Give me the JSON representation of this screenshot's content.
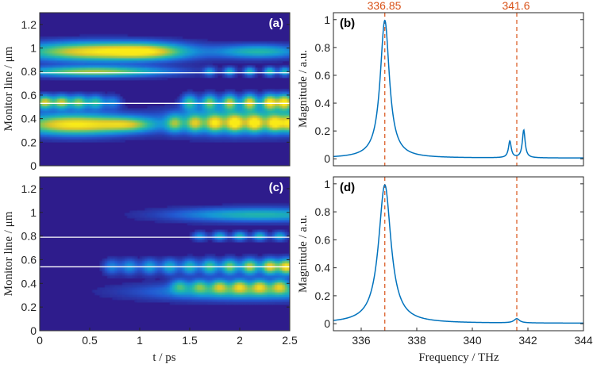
{
  "colors": {
    "background": "#2D1E8C",
    "line": "#0072BD",
    "dashed": "#D95319",
    "monitor": "#ffffff",
    "axis": "#262626"
  },
  "labels": {
    "ylabel_left": "Monitor line / μm",
    "xlabel_left": "t / ps",
    "ylabel_right": "Magnitude / a.u.",
    "xlabel_right": "Frequency / THz",
    "marker1": "336.85",
    "marker2": "341.6"
  },
  "chart_data": [
    {
      "id": "a",
      "type": "heatmap",
      "panel_label": "(a)",
      "xlabel": "",
      "ylabel": "Monitor line / μm",
      "xlim": [
        0,
        2.5
      ],
      "ylim": [
        0,
        1.3
      ],
      "yticks": [
        0,
        0.2,
        0.4,
        0.6,
        0.8,
        1,
        1.2
      ],
      "ytick_labels": [
        "0",
        "0.2",
        "0.4",
        "0.6",
        "0.8",
        "1",
        "1.2"
      ],
      "monitor_lines": [
        0.79,
        0.53
      ],
      "blobs": [
        {
          "t": 0.6,
          "y": 0.97,
          "st": 0.55,
          "sy": 0.055,
          "a": 0.95
        },
        {
          "t": 1.1,
          "y": 0.97,
          "st": 0.25,
          "sy": 0.045,
          "a": 0.4
        },
        {
          "t": 0.55,
          "y": 0.8,
          "st": 0.5,
          "sy": 0.03,
          "a": 0.75
        },
        {
          "t": 0.35,
          "y": 0.35,
          "st": 0.4,
          "sy": 0.06,
          "a": 1.0
        },
        {
          "t": 0.9,
          "y": 0.35,
          "st": 0.18,
          "sy": 0.04,
          "a": 0.45
        },
        {
          "t": 2.2,
          "y": 0.97,
          "st": 0.3,
          "sy": 0.04,
          "a": 0.5
        },
        {
          "t": 2.0,
          "y": 0.38,
          "st": 0.5,
          "sy": 0.08,
          "a": 0.5
        }
      ],
      "rows": [
        {
          "y": 0.54,
          "sy": 0.04,
          "t": [
            0.05,
            0.22,
            0.39,
            0.56,
            0.73
          ],
          "a": [
            0.85,
            0.8,
            0.7,
            0.55,
            0.3
          ],
          "st": 0.06
        },
        {
          "y": 0.54,
          "sy": 0.045,
          "t": [
            1.5,
            1.7,
            1.9,
            2.1,
            2.3,
            2.45
          ],
          "a": [
            0.55,
            0.65,
            0.75,
            0.85,
            0.95,
            1.0
          ],
          "st": 0.055
        },
        {
          "y": 0.8,
          "sy": 0.025,
          "t": [
            1.7,
            1.9,
            2.1,
            2.3,
            2.45
          ],
          "a": [
            0.35,
            0.45,
            0.5,
            0.55,
            0.5
          ],
          "st": 0.04
        },
        {
          "y": 0.36,
          "sy": 0.05,
          "t": [
            1.35,
            1.55,
            1.75,
            1.95,
            2.15,
            2.35,
            2.5
          ],
          "a": [
            0.5,
            0.55,
            0.6,
            0.65,
            0.65,
            0.7,
            0.7
          ],
          "st": 0.06
        }
      ]
    },
    {
      "id": "c",
      "type": "heatmap",
      "panel_label": "(c)",
      "xlabel": "t / ps",
      "ylabel": "Monitor line / μm",
      "xlim": [
        0,
        2.5
      ],
      "ylim": [
        0,
        1.3
      ],
      "xticks": [
        0,
        0.5,
        1,
        1.5,
        2,
        2.5
      ],
      "xtick_labels": [
        "0",
        "0.5",
        "1",
        "1.5",
        "2",
        "2.5"
      ],
      "yticks": [
        0,
        0.2,
        0.4,
        0.6,
        0.8,
        1,
        1.2
      ],
      "ytick_labels": [
        "0",
        "0.2",
        "0.4",
        "0.6",
        "0.8",
        "1",
        "1.2"
      ],
      "monitor_lines": [
        0.79,
        0.54
      ],
      "blobs": [
        {
          "t": 2.2,
          "y": 0.98,
          "st": 0.6,
          "sy": 0.04,
          "a": 0.5
        },
        {
          "t": 2.1,
          "y": 0.33,
          "st": 0.7,
          "sy": 0.05,
          "a": 0.5
        }
      ],
      "rows": [
        {
          "y": 0.54,
          "sy": 0.045,
          "t": [
            0.72,
            0.9,
            1.1,
            1.3,
            1.5,
            1.7,
            1.9,
            2.1,
            2.3,
            2.47
          ],
          "a": [
            0.3,
            0.35,
            0.4,
            0.45,
            0.5,
            0.6,
            0.7,
            0.8,
            0.9,
            1.0
          ],
          "st": 0.06
        },
        {
          "y": 0.8,
          "sy": 0.025,
          "t": [
            1.6,
            1.8,
            2.0,
            2.2,
            2.4
          ],
          "a": [
            0.35,
            0.45,
            0.5,
            0.5,
            0.45
          ],
          "st": 0.05
        },
        {
          "y": 0.38,
          "sy": 0.04,
          "t": [
            1.4,
            1.6,
            1.8,
            2.0,
            2.2,
            2.4
          ],
          "a": [
            0.4,
            0.45,
            0.55,
            0.6,
            0.6,
            0.6
          ],
          "st": 0.06
        }
      ]
    },
    {
      "id": "b",
      "type": "line",
      "panel_label": "(b)",
      "xlabel": "",
      "ylabel": "Magnitude / a.u.",
      "xlim": [
        335,
        344
      ],
      "ylim": [
        -0.05,
        1.05
      ],
      "yticks": [
        0,
        0.2,
        0.4,
        0.6,
        0.8,
        1
      ],
      "ytick_labels": [
        "0",
        "0.2",
        "0.4",
        "0.6",
        "0.8",
        "1"
      ],
      "markers": [
        336.85,
        341.6
      ],
      "peaks": [
        {
          "f": 336.85,
          "a": 0.99,
          "w": 0.2
        },
        {
          "f": 341.35,
          "a": 0.12,
          "w": 0.06
        },
        {
          "f": 341.85,
          "a": 0.2,
          "w": 0.06
        }
      ],
      "baseline": 0.005
    },
    {
      "id": "d",
      "type": "line",
      "panel_label": "(d)",
      "xlabel": "Frequency / THz",
      "ylabel": "Magnitude / a.u.",
      "xlim": [
        335,
        344
      ],
      "ylim": [
        -0.05,
        1.05
      ],
      "xticks": [
        336,
        338,
        340,
        342,
        344
      ],
      "xtick_labels": [
        "336",
        "338",
        "340",
        "342",
        "344"
      ],
      "yticks": [
        0,
        0.2,
        0.4,
        0.6,
        0.8,
        1
      ],
      "ytick_labels": [
        "0",
        "0.2",
        "0.4",
        "0.6",
        "0.8",
        "1"
      ],
      "markers": [
        336.85,
        341.6
      ],
      "peaks": [
        {
          "f": 336.85,
          "a": 0.99,
          "w": 0.27
        },
        {
          "f": 341.6,
          "a": 0.03,
          "w": 0.12
        }
      ],
      "baseline": 0.003
    }
  ]
}
